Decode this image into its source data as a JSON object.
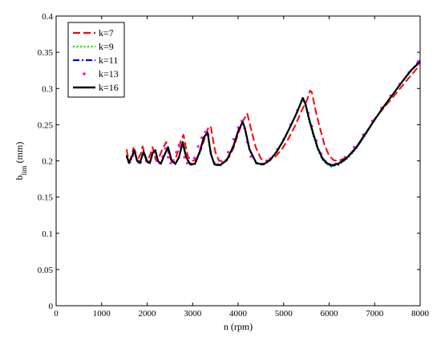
{
  "chart_data": {
    "type": "line",
    "xlabel": "n (rpm)",
    "ylabel_main": "b",
    "ylabel_sub": "lim",
    "ylabel_unit": " (mm)",
    "xlim": [
      0,
      8000
    ],
    "ylim": [
      0,
      0.4
    ],
    "xticks": [
      0,
      1000,
      2000,
      3000,
      4000,
      5000,
      6000,
      7000,
      8000
    ],
    "xtick_labels": [
      "0",
      "1000",
      "2000",
      "3000",
      "4000",
      "5000",
      "6000",
      "7000",
      "8000"
    ],
    "yticks": [
      0,
      0.05,
      0.1,
      0.15,
      0.2,
      0.25,
      0.3,
      0.35,
      0.4
    ],
    "ytick_labels": [
      "0",
      "0.05",
      "0.1",
      "0.15",
      "0.2",
      "0.25",
      "0.3",
      "0.35",
      "0.4"
    ],
    "grid": false,
    "legend_position": "top-left",
    "series": [
      {
        "name": "k=7",
        "color": "#ff0000",
        "style": "dashed",
        "x": [
          1550,
          1580,
          1620,
          1660,
          1700,
          1740,
          1780,
          1860,
          1900,
          1960,
          2000,
          2060,
          2120,
          2160,
          2200,
          2260,
          2320,
          2360,
          2420,
          2450,
          2480,
          2540,
          2620,
          2700,
          2740,
          2800,
          2840,
          2900,
          3000,
          3080,
          3180,
          3260,
          3340,
          3400,
          3440,
          3500,
          3580,
          3700,
          3800,
          3900,
          4000,
          4100,
          4200,
          4280,
          4380,
          4500,
          4650,
          4800,
          4950,
          5100,
          5250,
          5400,
          5520,
          5580,
          5620,
          5700,
          5800,
          5900,
          6000,
          6100,
          6200,
          6400,
          6600,
          6800,
          7000,
          7200,
          7400,
          7600,
          7800,
          8000
        ],
        "y": [
          0.216,
          0.205,
          0.2,
          0.207,
          0.218,
          0.208,
          0.2,
          0.21,
          0.22,
          0.207,
          0.2,
          0.207,
          0.219,
          0.208,
          0.2,
          0.205,
          0.214,
          0.219,
          0.226,
          0.218,
          0.208,
          0.2,
          0.202,
          0.218,
          0.228,
          0.236,
          0.222,
          0.205,
          0.2,
          0.202,
          0.215,
          0.23,
          0.245,
          0.248,
          0.232,
          0.212,
          0.2,
          0.2,
          0.205,
          0.218,
          0.237,
          0.255,
          0.265,
          0.245,
          0.22,
          0.203,
          0.2,
          0.205,
          0.215,
          0.23,
          0.248,
          0.27,
          0.285,
          0.297,
          0.295,
          0.27,
          0.245,
          0.222,
          0.207,
          0.201,
          0.2,
          0.205,
          0.218,
          0.237,
          0.258,
          0.273,
          0.288,
          0.303,
          0.318,
          0.333
        ]
      },
      {
        "name": "k=9",
        "color": "#00dd00",
        "style": "dotted",
        "x": [
          1550,
          1600,
          1660,
          1720,
          1780,
          1840,
          1920,
          2000,
          2060,
          2120,
          2180,
          2240,
          2300,
          2380,
          2460,
          2540,
          2620,
          2700,
          2780,
          2860,
          2950,
          3050,
          3150,
          3250,
          3330,
          3400,
          3480,
          3600,
          3750,
          3900,
          4000,
          4100,
          4150,
          4250,
          4400,
          4550,
          4700,
          4850,
          5000,
          5150,
          5300,
          5420,
          5480,
          5560,
          5650,
          5750,
          5850,
          5950,
          6050,
          6200,
          6400,
          6600,
          6800,
          7000,
          7200,
          7400,
          7600,
          7800,
          8000
        ],
        "y": [
          0.21,
          0.196,
          0.204,
          0.214,
          0.199,
          0.196,
          0.212,
          0.198,
          0.197,
          0.21,
          0.214,
          0.199,
          0.195,
          0.208,
          0.218,
          0.2,
          0.195,
          0.204,
          0.224,
          0.204,
          0.194,
          0.195,
          0.21,
          0.232,
          0.238,
          0.21,
          0.195,
          0.193,
          0.2,
          0.22,
          0.24,
          0.253,
          0.243,
          0.215,
          0.196,
          0.194,
          0.2,
          0.212,
          0.228,
          0.247,
          0.267,
          0.285,
          0.276,
          0.255,
          0.235,
          0.215,
          0.202,
          0.195,
          0.192,
          0.194,
          0.203,
          0.217,
          0.236,
          0.256,
          0.274,
          0.291,
          0.308,
          0.324,
          0.34
        ]
      },
      {
        "name": "k=11",
        "color": "#0000ee",
        "style": "dashdot",
        "x": [
          1550,
          1600,
          1660,
          1720,
          1780,
          1840,
          1920,
          2000,
          2060,
          2120,
          2180,
          2240,
          2300,
          2380,
          2460,
          2540,
          2620,
          2700,
          2780,
          2860,
          2950,
          3050,
          3150,
          3250,
          3330,
          3400,
          3480,
          3600,
          3750,
          3900,
          4000,
          4100,
          4150,
          4250,
          4400,
          4550,
          4700,
          4850,
          5000,
          5150,
          5300,
          5420,
          5480,
          5560,
          5650,
          5750,
          5850,
          5950,
          6050,
          6200,
          6400,
          6600,
          6800,
          7000,
          7200,
          7400,
          7600,
          7800,
          8000
        ],
        "y": [
          0.208,
          0.197,
          0.205,
          0.215,
          0.2,
          0.197,
          0.212,
          0.198,
          0.197,
          0.211,
          0.214,
          0.2,
          0.196,
          0.208,
          0.219,
          0.2,
          0.196,
          0.205,
          0.225,
          0.204,
          0.195,
          0.196,
          0.211,
          0.233,
          0.238,
          0.21,
          0.195,
          0.194,
          0.201,
          0.221,
          0.241,
          0.254,
          0.244,
          0.215,
          0.197,
          0.195,
          0.201,
          0.213,
          0.229,
          0.248,
          0.268,
          0.286,
          0.278,
          0.257,
          0.237,
          0.217,
          0.203,
          0.196,
          0.193,
          0.195,
          0.204,
          0.218,
          0.237,
          0.257,
          0.275,
          0.292,
          0.309,
          0.325,
          0.339
        ]
      },
      {
        "name": "k=13",
        "color": "#ff00ff",
        "style": "dots",
        "x": [
          1560,
          1620,
          1680,
          1740,
          1800,
          1860,
          1920,
          1980,
          2040,
          2100,
          2160,
          2220,
          2280,
          2340,
          2400,
          2460,
          2520,
          2580,
          2640,
          2700,
          2760,
          2820,
          2880,
          2960,
          3040,
          3120,
          3200,
          3280,
          3340,
          3400,
          3480,
          3560,
          3660,
          3780,
          3900,
          4000,
          4080,
          4140,
          4200,
          4280,
          4400,
          4540,
          4700,
          4860,
          5000,
          5150,
          5300,
          5420,
          5480,
          5540,
          5620,
          5720,
          5820,
          5920,
          6020,
          6150,
          6350,
          6550,
          6750,
          6950,
          7150,
          7350,
          7550,
          7750,
          7950
        ],
        "y": [
          0.205,
          0.198,
          0.207,
          0.212,
          0.2,
          0.198,
          0.21,
          0.2,
          0.199,
          0.21,
          0.212,
          0.2,
          0.197,
          0.206,
          0.217,
          0.205,
          0.197,
          0.199,
          0.212,
          0.222,
          0.22,
          0.205,
          0.197,
          0.196,
          0.204,
          0.22,
          0.232,
          0.24,
          0.236,
          0.212,
          0.197,
          0.195,
          0.198,
          0.212,
          0.23,
          0.246,
          0.255,
          0.245,
          0.226,
          0.206,
          0.197,
          0.196,
          0.203,
          0.216,
          0.23,
          0.25,
          0.27,
          0.286,
          0.281,
          0.266,
          0.248,
          0.228,
          0.21,
          0.199,
          0.195,
          0.196,
          0.205,
          0.219,
          0.236,
          0.255,
          0.273,
          0.29,
          0.306,
          0.322,
          0.337
        ]
      },
      {
        "name": "k=16",
        "color": "#000000",
        "style": "solid",
        "x": [
          1550,
          1600,
          1660,
          1720,
          1780,
          1840,
          1920,
          2000,
          2060,
          2120,
          2180,
          2240,
          2300,
          2380,
          2460,
          2540,
          2620,
          2700,
          2780,
          2860,
          2950,
          3050,
          3150,
          3250,
          3330,
          3400,
          3480,
          3600,
          3750,
          3900,
          4000,
          4100,
          4150,
          4250,
          4400,
          4550,
          4700,
          4850,
          5000,
          5150,
          5300,
          5420,
          5480,
          5560,
          5650,
          5750,
          5850,
          5950,
          6050,
          6200,
          6400,
          6600,
          6800,
          7000,
          7200,
          7400,
          7600,
          7800,
          8000
        ],
        "y": [
          0.207,
          0.197,
          0.205,
          0.215,
          0.2,
          0.197,
          0.213,
          0.199,
          0.197,
          0.211,
          0.215,
          0.2,
          0.196,
          0.208,
          0.219,
          0.2,
          0.196,
          0.205,
          0.226,
          0.205,
          0.195,
          0.196,
          0.212,
          0.233,
          0.239,
          0.21,
          0.195,
          0.194,
          0.201,
          0.221,
          0.241,
          0.254,
          0.245,
          0.216,
          0.197,
          0.195,
          0.201,
          0.213,
          0.229,
          0.248,
          0.268,
          0.287,
          0.279,
          0.258,
          0.238,
          0.218,
          0.204,
          0.197,
          0.194,
          0.196,
          0.205,
          0.219,
          0.238,
          0.257,
          0.275,
          0.292,
          0.309,
          0.325,
          0.337
        ]
      }
    ]
  }
}
